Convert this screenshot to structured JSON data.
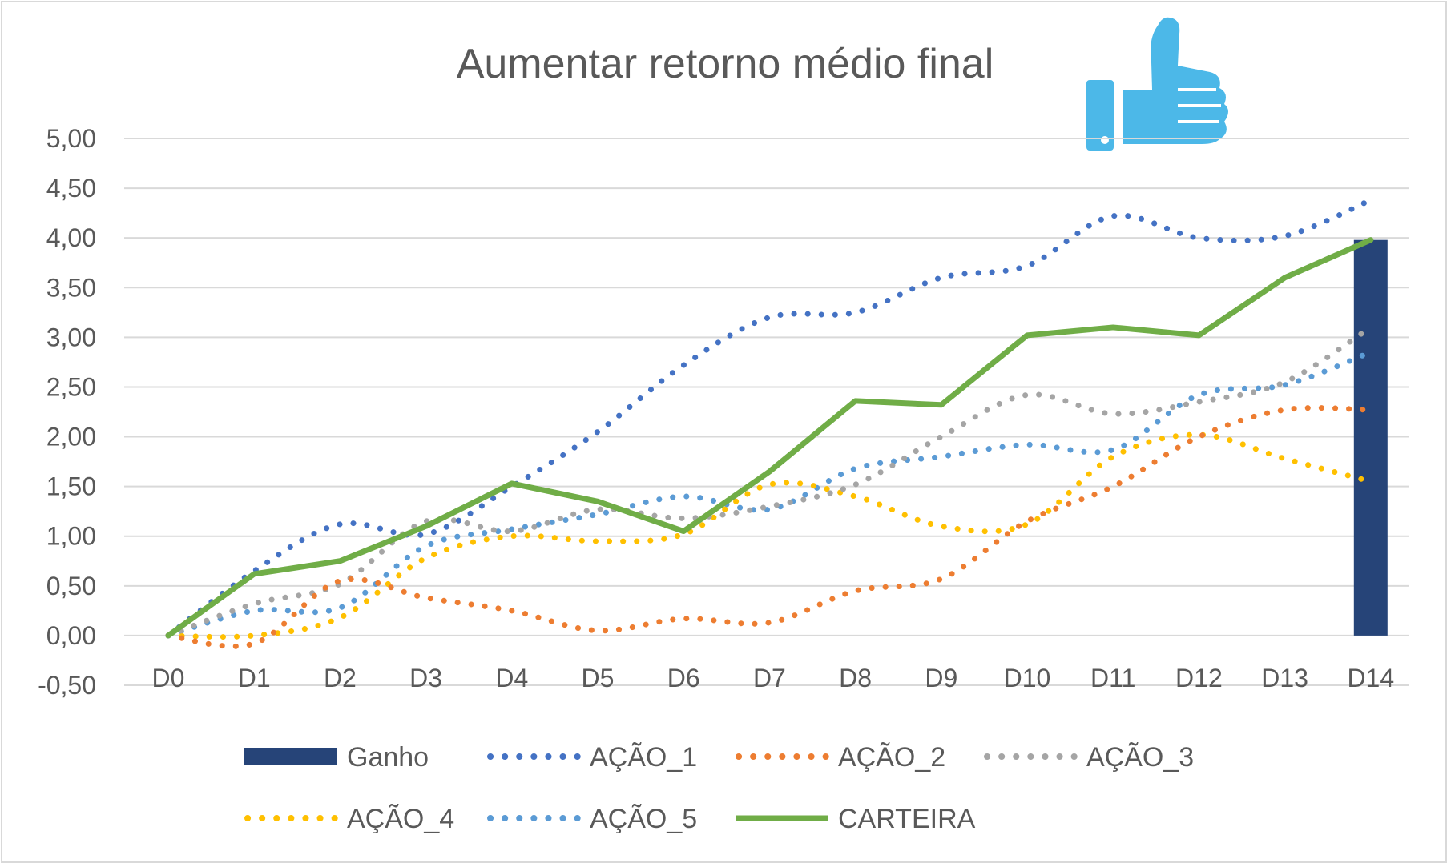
{
  "chart_data": {
    "type": "line",
    "title": "Aumentar retorno médio final",
    "xlabel": "",
    "ylabel": "",
    "categories": [
      "D0",
      "D1",
      "D2",
      "D3",
      "D4",
      "D5",
      "D6",
      "D7",
      "D8",
      "D9",
      "D10",
      "D11",
      "D12",
      "D13",
      "D14"
    ],
    "ylim": [
      -0.5,
      5.0
    ],
    "yticks": [
      -0.5,
      0.0,
      0.5,
      1.0,
      1.5,
      2.0,
      2.5,
      3.0,
      3.5,
      4.0,
      4.5,
      5.0
    ],
    "ytick_labels": [
      "-0,50",
      "0,00",
      "0,50",
      "1,00",
      "1,50",
      "2,00",
      "2,50",
      "3,00",
      "3,50",
      "4,00",
      "4,50",
      "5,00"
    ],
    "grid": true,
    "legend_position": "bottom",
    "icon": "thumbs-up-icon",
    "icon_color": "#4cb8e8",
    "bar_series": {
      "name": "Ganho",
      "color": "#264478",
      "values": [
        null,
        null,
        null,
        null,
        null,
        null,
        null,
        null,
        null,
        null,
        null,
        null,
        null,
        null,
        3.98
      ]
    },
    "series": [
      {
        "name": "AÇÃO_1",
        "style": "dotted",
        "color": "#4472c4",
        "values": [
          0.0,
          0.65,
          1.12,
          1.02,
          1.5,
          2.05,
          2.72,
          3.2,
          3.25,
          3.6,
          3.72,
          4.22,
          4.0,
          4.02,
          4.38
        ]
      },
      {
        "name": "AÇÃO_2",
        "style": "dotted",
        "color": "#ed7d31",
        "values": [
          0.0,
          -0.08,
          0.55,
          0.38,
          0.25,
          0.05,
          0.17,
          0.13,
          0.45,
          0.57,
          1.15,
          1.5,
          2.0,
          2.27,
          2.27
        ]
      },
      {
        "name": "AÇÃO_3",
        "style": "dotted",
        "color": "#a5a5a5",
        "values": [
          0.0,
          0.32,
          0.52,
          1.15,
          1.05,
          1.27,
          1.18,
          1.3,
          1.52,
          2.0,
          2.42,
          2.23,
          2.35,
          2.55,
          3.1
        ]
      },
      {
        "name": "AÇÃO_4",
        "style": "dotted",
        "color": "#ffc000",
        "values": [
          0.0,
          0.0,
          0.18,
          0.78,
          1.0,
          0.95,
          1.02,
          1.52,
          1.4,
          1.1,
          1.12,
          1.8,
          2.02,
          1.78,
          1.55
        ]
      },
      {
        "name": "AÇÃO_5",
        "style": "dotted",
        "color": "#5b9bd5",
        "values": [
          0.0,
          0.25,
          0.28,
          0.9,
          1.07,
          1.22,
          1.4,
          1.27,
          1.68,
          1.8,
          1.92,
          1.87,
          2.42,
          2.52,
          2.85
        ]
      },
      {
        "name": "CARTEIRA",
        "style": "solid",
        "color": "#70ad47",
        "values": [
          0.0,
          0.62,
          0.75,
          1.1,
          1.53,
          1.35,
          1.05,
          1.65,
          2.36,
          2.32,
          3.02,
          3.1,
          3.02,
          3.6,
          3.98
        ]
      }
    ],
    "legend": [
      {
        "key": "ganho",
        "label": "Ganho"
      },
      {
        "key": "acao1",
        "label": "AÇÃO_1"
      },
      {
        "key": "acao2",
        "label": "AÇÃO_2"
      },
      {
        "key": "acao3",
        "label": "AÇÃO_3"
      },
      {
        "key": "acao4",
        "label": "AÇÃO_4"
      },
      {
        "key": "acao5",
        "label": "AÇÃO_5"
      },
      {
        "key": "carteira",
        "label": "CARTEIRA"
      }
    ]
  }
}
